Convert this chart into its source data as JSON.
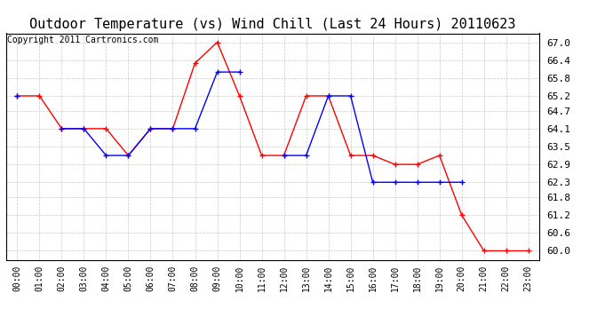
{
  "title": "Outdoor Temperature (vs) Wind Chill (Last 24 Hours) 20110623",
  "copyright": "Copyright 2011 Cartronics.com",
  "x_labels": [
    "00:00",
    "01:00",
    "02:00",
    "03:00",
    "04:00",
    "05:00",
    "06:00",
    "07:00",
    "08:00",
    "09:00",
    "10:00",
    "11:00",
    "12:00",
    "13:00",
    "14:00",
    "15:00",
    "16:00",
    "17:00",
    "18:00",
    "19:00",
    "20:00",
    "21:00",
    "22:00",
    "23:00"
  ],
  "temp_red": [
    65.2,
    65.2,
    64.1,
    64.1,
    64.1,
    63.2,
    64.1,
    64.1,
    66.3,
    67.0,
    65.2,
    63.2,
    63.2,
    65.2,
    65.2,
    63.2,
    63.2,
    62.9,
    62.9,
    63.2,
    61.2,
    60.0,
    60.0,
    60.0
  ],
  "wind_blue": [
    65.2,
    null,
    64.1,
    64.1,
    63.2,
    63.2,
    64.1,
    64.1,
    64.1,
    66.0,
    66.0,
    null,
    63.2,
    63.2,
    65.2,
    65.2,
    62.3,
    62.3,
    62.3,
    62.3,
    62.3,
    null,
    null,
    null
  ],
  "ylim_min": 59.7,
  "ylim_max": 67.3,
  "yticks": [
    60.0,
    60.6,
    61.2,
    61.8,
    62.3,
    62.9,
    63.5,
    64.1,
    64.7,
    65.2,
    65.8,
    66.4,
    67.0
  ],
  "red_color": "#ff0000",
  "blue_color": "#0000ff",
  "grid_color": "#bbbbbb",
  "bg_color": "#ffffff",
  "title_fontsize": 11,
  "copyright_fontsize": 7
}
